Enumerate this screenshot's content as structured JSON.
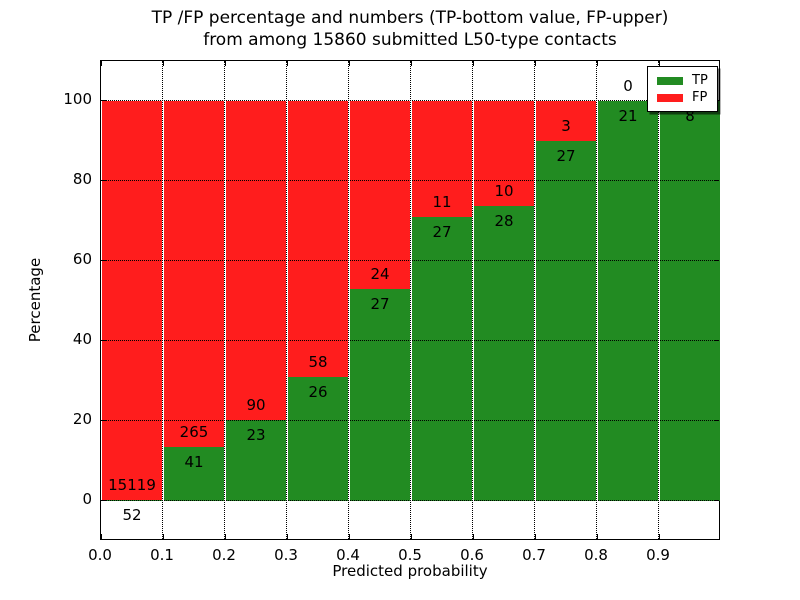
{
  "title": {
    "line1": "TP /FP percentage and numbers (TP-bottom value, FP-upper)",
    "line2": "from among 15860 submitted L50-type contacts"
  },
  "chart_data": {
    "type": "bar",
    "stacked": true,
    "normalized_to_percent": true,
    "title": "TP /FP percentage and numbers (TP-bottom value, FP-upper) from among 15860 submitted L50-type contacts",
    "xlabel": "Predicted probability",
    "ylabel": "Percentage",
    "xlim": [
      0.0,
      1.0
    ],
    "ylim": [
      -10,
      110
    ],
    "grid": true,
    "bin_width": 0.1,
    "categories": [
      "0.0-0.1",
      "0.1-0.2",
      "0.2-0.3",
      "0.3-0.4",
      "0.4-0.5",
      "0.5-0.6",
      "0.6-0.7",
      "0.7-0.8",
      "0.8-0.9",
      "0.9-1.0"
    ],
    "series": [
      {
        "name": "TP",
        "color": "#228b22",
        "values": [
          52,
          41,
          23,
          26,
          27,
          27,
          28,
          27,
          21,
          8
        ]
      },
      {
        "name": "FP",
        "color": "#ff1d1d",
        "values": [
          15119,
          265,
          90,
          58,
          24,
          11,
          10,
          3,
          0,
          0
        ]
      }
    ],
    "tp_percent": [
      0.34,
      13.4,
      20.35,
      30.95,
      52.94,
      71.05,
      73.68,
      90.0,
      100.0,
      100.0
    ],
    "x_ticks": [
      "0.0",
      "0.1",
      "0.2",
      "0.3",
      "0.4",
      "0.5",
      "0.6",
      "0.7",
      "0.8",
      "0.9"
    ],
    "y_ticks": [
      0,
      20,
      40,
      60,
      80,
      100
    ],
    "legend": {
      "position": "upper right",
      "entries": [
        "TP",
        "FP"
      ]
    }
  }
}
